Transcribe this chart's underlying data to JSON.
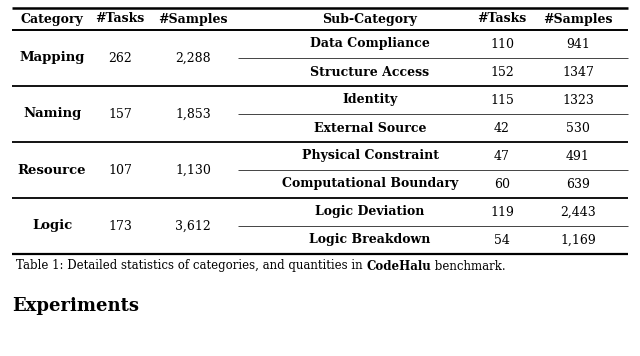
{
  "categories": [
    "Mapping",
    "Naming",
    "Resource",
    "Logic"
  ],
  "cat_tasks": [
    "262",
    "157",
    "107",
    "173"
  ],
  "cat_samples": [
    "2,288",
    "1,853",
    "1,130",
    "3,612"
  ],
  "subcategories": [
    [
      "Data Compliance",
      "Structure Access"
    ],
    [
      "Identity",
      "External Source"
    ],
    [
      "Physical Constraint",
      "Computational Boundary"
    ],
    [
      "Logic Deviation",
      "Logic Breakdown"
    ]
  ],
  "sub_tasks": [
    [
      "110",
      "152"
    ],
    [
      "115",
      "42"
    ],
    [
      "47",
      "60"
    ],
    [
      "119",
      "54"
    ]
  ],
  "sub_samples": [
    [
      "941",
      "1347"
    ],
    [
      "1323",
      "530"
    ],
    [
      "491",
      "639"
    ],
    [
      "2,443",
      "1,169"
    ]
  ],
  "caption_plain": "Table 1: Detailed statistics of categories, and quantities in ",
  "caption_bold": "CodeHalu",
  "caption_end": " benchmark.",
  "experiments_label": "Experiments",
  "header_category": "Category",
  "header_tasks": "#Tasks",
  "header_samples": "#Samples",
  "header_subcategory": "Sub-Category",
  "bg_color": "#ffffff",
  "text_color": "#000000"
}
